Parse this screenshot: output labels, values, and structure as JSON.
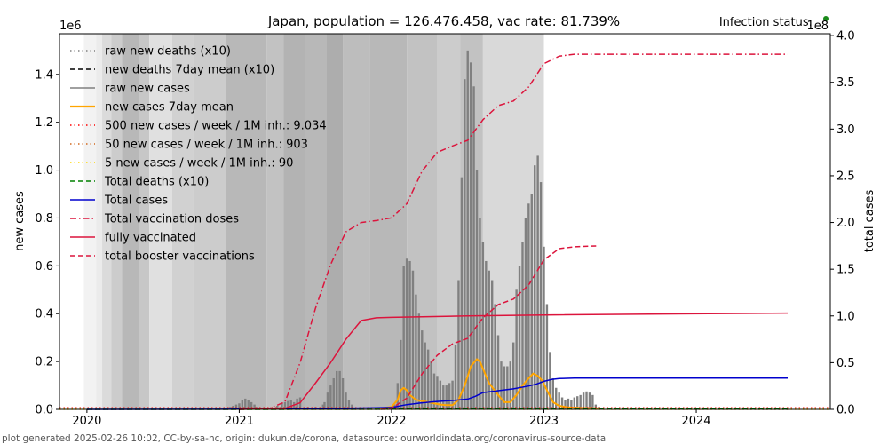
{
  "chart_data": {
    "type": "line",
    "title": "Japan, population = 126.476.458, vac rate: 81.739%",
    "status_label": "Infection status:",
    "status_color": "#1a8a1a",
    "xlabel": "",
    "ylabel_left": "new cases",
    "ylabel_right": "total cases",
    "left_scale_label": "1e6",
    "right_scale_label": "1e8",
    "footer": "plot generated 2025-02-26 10:02, CC-by-sa-nc, origin: dukun.de/corona, datasource: ourworldindata.org/coronavirus-source-data",
    "xlim": [
      2019.82,
      2024.88
    ],
    "ylim_left": [
      0,
      1.57
    ],
    "ylim_right": [
      0,
      4.02
    ],
    "x_ticks": [
      {
        "value": 2020,
        "label": "2020"
      },
      {
        "value": 2021,
        "label": "2021"
      },
      {
        "value": 2022,
        "label": "2022"
      },
      {
        "value": 2023,
        "label": "2023"
      },
      {
        "value": 2024,
        "label": "2024"
      }
    ],
    "y_ticks_left": [
      {
        "value": 0,
        "label": "0.0"
      },
      {
        "value": 0.2,
        "label": "0.2"
      },
      {
        "value": 0.4,
        "label": "0.4"
      },
      {
        "value": 0.6,
        "label": "0.6"
      },
      {
        "value": 0.8,
        "label": "0.8"
      },
      {
        "value": 1.0,
        "label": "1.0"
      },
      {
        "value": 1.2,
        "label": "1.2"
      },
      {
        "value": 1.4,
        "label": "1.4"
      }
    ],
    "y_ticks_right": [
      {
        "value": 0,
        "label": "0.0"
      },
      {
        "value": 0.5,
        "label": "0.5"
      },
      {
        "value": 1.0,
        "label": "1.0"
      },
      {
        "value": 1.5,
        "label": "1.5"
      },
      {
        "value": 2.0,
        "label": "2.0"
      },
      {
        "value": 2.5,
        "label": "2.5"
      },
      {
        "value": 3.0,
        "label": "3.0"
      },
      {
        "value": 3.5,
        "label": "3.5"
      },
      {
        "value": 4.0,
        "label": "4.0"
      }
    ],
    "legend": [
      {
        "label": "raw new deaths (x10)",
        "color": "#808080",
        "style": "dotted"
      },
      {
        "label": "new deaths 7day mean (x10)",
        "color": "#000000",
        "style": "dashed"
      },
      {
        "label": "raw new cases",
        "color": "#808080",
        "style": "solid"
      },
      {
        "label": "new cases 7day mean",
        "color": "#ffa500",
        "style": "solid"
      },
      {
        "label": "500 new cases / week / 1M inh.: 9.034",
        "color": "#ff0000",
        "style": "dotted"
      },
      {
        "label": "50 new cases / week / 1M inh.: 903",
        "color": "#d2691e",
        "style": "dotted"
      },
      {
        "label": "5 new cases / week / 1M inh.: 90",
        "color": "#ffd700",
        "style": "dotted"
      },
      {
        "label": "Total deaths (x10)",
        "color": "#008000",
        "style": "dashed"
      },
      {
        "label": "Total cases",
        "color": "#0000cd",
        "style": "solid"
      },
      {
        "label": "Total vaccination doses",
        "color": "#dc143c",
        "style": "dashdot"
      },
      {
        "label": "fully vaccinated",
        "color": "#dc143c",
        "style": "solid"
      },
      {
        "label": "total booster vaccinations",
        "color": "#dc143c",
        "style": "dashed"
      }
    ],
    "background_bands": [
      {
        "x0": 2019.98,
        "x1": 2020.06,
        "gray": 0.95
      },
      {
        "x0": 2020.06,
        "x1": 2020.1,
        "gray": 0.92
      },
      {
        "x0": 2020.1,
        "x1": 2020.16,
        "gray": 0.86
      },
      {
        "x0": 2020.16,
        "x1": 2020.23,
        "gray": 0.8
      },
      {
        "x0": 2020.23,
        "x1": 2020.34,
        "gray": 0.72
      },
      {
        "x0": 2020.34,
        "x1": 2020.41,
        "gray": 0.78
      },
      {
        "x0": 2020.41,
        "x1": 2020.56,
        "gray": 0.88
      },
      {
        "x0": 2020.56,
        "x1": 2020.7,
        "gray": 0.82
      },
      {
        "x0": 2020.7,
        "x1": 2020.91,
        "gray": 0.8
      },
      {
        "x0": 2020.91,
        "x1": 2021.18,
        "gray": 0.72
      },
      {
        "x0": 2021.18,
        "x1": 2021.29,
        "gray": 0.76
      },
      {
        "x0": 2021.29,
        "x1": 2021.43,
        "gray": 0.7
      },
      {
        "x0": 2021.43,
        "x1": 2021.57,
        "gray": 0.72
      },
      {
        "x0": 2021.57,
        "x1": 2021.68,
        "gray": 0.68
      },
      {
        "x0": 2021.68,
        "x1": 2021.86,
        "gray": 0.74
      },
      {
        "x0": 2021.86,
        "x1": 2022.1,
        "gray": 0.72
      },
      {
        "x0": 2022.1,
        "x1": 2022.3,
        "gray": 0.76
      },
      {
        "x0": 2022.3,
        "x1": 2022.45,
        "gray": 0.8
      },
      {
        "x0": 2022.45,
        "x1": 2022.6,
        "gray": 0.76
      },
      {
        "x0": 2022.6,
        "x1": 2023.0,
        "gray": 0.85
      }
    ],
    "series": [
      {
        "name": "raw new cases",
        "axis": "left",
        "type": "bar",
        "color": "#808080",
        "x": [
          2020.94,
          2020.96,
          2020.98,
          2021.0,
          2021.02,
          2021.04,
          2021.06,
          2021.08,
          2021.1,
          2021.12,
          2021.2,
          2021.25,
          2021.28,
          2021.3,
          2021.32,
          2021.34,
          2021.36,
          2021.38,
          2021.4,
          2021.45,
          2021.5,
          2021.55,
          2021.56,
          2021.58,
          2021.6,
          2021.62,
          2021.64,
          2021.66,
          2021.68,
          2021.7,
          2021.72,
          2021.74,
          2021.78,
          2021.85,
          2021.92,
          2021.98,
          2022.02,
          2022.04,
          2022.06,
          2022.08,
          2022.1,
          2022.12,
          2022.14,
          2022.16,
          2022.18,
          2022.2,
          2022.22,
          2022.24,
          2022.26,
          2022.28,
          2022.3,
          2022.32,
          2022.34,
          2022.36,
          2022.38,
          2022.4,
          2022.42,
          2022.44,
          2022.46,
          2022.48,
          2022.5,
          2022.52,
          2022.54,
          2022.56,
          2022.58,
          2022.6,
          2022.62,
          2022.64,
          2022.66,
          2022.68,
          2022.7,
          2022.72,
          2022.74,
          2022.76,
          2022.78,
          2022.8,
          2022.82,
          2022.84,
          2022.86,
          2022.88,
          2022.9,
          2022.92,
          2022.94,
          2022.96,
          2022.98,
          2023.0,
          2023.02,
          2023.04,
          2023.06,
          2023.08,
          2023.1,
          2023.12,
          2023.14,
          2023.16,
          2023.18,
          2023.2,
          2023.22,
          2023.24,
          2023.26,
          2023.28,
          2023.3,
          2023.32,
          2023.34,
          2023.36
        ],
        "values": [
          0.01,
          0.015,
          0.02,
          0.025,
          0.04,
          0.045,
          0.04,
          0.03,
          0.02,
          0.01,
          0.005,
          0.015,
          0.025,
          0.03,
          0.035,
          0.04,
          0.03,
          0.045,
          0.05,
          0.01,
          0.01,
          0.02,
          0.03,
          0.07,
          0.1,
          0.13,
          0.16,
          0.16,
          0.13,
          0.07,
          0.04,
          0.02,
          0.005,
          0.003,
          0.003,
          0.005,
          0.02,
          0.11,
          0.29,
          0.6,
          0.63,
          0.62,
          0.58,
          0.48,
          0.4,
          0.33,
          0.28,
          0.25,
          0.2,
          0.15,
          0.14,
          0.12,
          0.1,
          0.1,
          0.11,
          0.12,
          0.27,
          0.54,
          0.97,
          1.38,
          1.5,
          1.45,
          1.35,
          1.0,
          0.8,
          0.7,
          0.62,
          0.58,
          0.54,
          0.44,
          0.31,
          0.2,
          0.18,
          0.18,
          0.2,
          0.28,
          0.5,
          0.6,
          0.7,
          0.8,
          0.86,
          0.9,
          1.02,
          1.06,
          0.95,
          0.68,
          0.44,
          0.24,
          0.13,
          0.09,
          0.07,
          0.05,
          0.04,
          0.045,
          0.04,
          0.05,
          0.055,
          0.06,
          0.07,
          0.075,
          0.07,
          0.06,
          0.02,
          0.01
        ]
      },
      {
        "name": "new cases 7day mean",
        "axis": "left",
        "type": "line",
        "color": "#ffa500",
        "x": [
          2021.9,
          2022.0,
          2022.04,
          2022.06,
          2022.08,
          2022.1,
          2022.12,
          2022.14,
          2022.16,
          2022.2,
          2022.24,
          2022.28,
          2022.32,
          2022.36,
          2022.4,
          2022.44,
          2022.48,
          2022.52,
          2022.56,
          2022.58,
          2022.6,
          2022.64,
          2022.7,
          2022.74,
          2022.78,
          2022.82,
          2022.86,
          2022.9,
          2022.93,
          2022.96,
          2022.99,
          2023.02,
          2023.06,
          2023.1,
          2023.16,
          2023.24,
          2023.36
        ],
        "values": [
          0.002,
          0.01,
          0.04,
          0.08,
          0.09,
          0.08,
          0.06,
          0.05,
          0.04,
          0.035,
          0.03,
          0.025,
          0.02,
          0.018,
          0.018,
          0.04,
          0.1,
          0.18,
          0.21,
          0.2,
          0.17,
          0.11,
          0.06,
          0.03,
          0.03,
          0.06,
          0.1,
          0.13,
          0.15,
          0.14,
          0.12,
          0.08,
          0.03,
          0.015,
          0.008,
          0.006,
          0.004
        ]
      },
      {
        "name": "500 new cases / week / 1M inh.: 9.034",
        "axis": "left",
        "type": "hline",
        "color": "#ff0000",
        "style": "dotted",
        "value": 0.0065
      },
      {
        "name": "50 new cases / week / 1M inh.: 903",
        "axis": "left",
        "type": "hline",
        "color": "#d2691e",
        "style": "dotted",
        "value": 0.0007
      },
      {
        "name": "5 new cases / week / 1M inh.: 90",
        "axis": "left",
        "type": "hline",
        "color": "#ffd700",
        "style": "dotted",
        "value": 0.0001
      },
      {
        "name": "raw new deaths (x10)",
        "axis": "left",
        "type": "line",
        "color": "#808080",
        "style": "dotted",
        "x": [
          2020.0,
          2021.0,
          2022.0,
          2022.7,
          2023.0,
          2023.4,
          2024.6
        ],
        "values": [
          0.0,
          0.001,
          0.001,
          0.003,
          0.004,
          0.001,
          0.0
        ]
      },
      {
        "name": "Total deaths (x10)",
        "axis": "right",
        "type": "line",
        "color": "#008000",
        "style": "dashed",
        "x": [
          2020.0,
          2021.0,
          2022.0,
          2022.5,
          2023.0,
          2023.4,
          2024.6
        ],
        "values": [
          0.0,
          0.0003,
          0.0019,
          0.0031,
          0.005,
          0.0075,
          0.0075
        ]
      },
      {
        "name": "Total cases",
        "axis": "right",
        "type": "line",
        "color": "#0000cd",
        "style": "solid",
        "x": [
          2020.0,
          2021.0,
          2021.5,
          2021.9,
          2022.0,
          2022.1,
          2022.2,
          2022.3,
          2022.4,
          2022.5,
          2022.55,
          2022.6,
          2022.7,
          2022.8,
          2022.9,
          2022.95,
          2023.0,
          2023.05,
          2023.1,
          2023.2,
          2023.4,
          2024.6
        ],
        "values": [
          0.0,
          0.002,
          0.008,
          0.017,
          0.02,
          0.05,
          0.07,
          0.085,
          0.095,
          0.11,
          0.14,
          0.18,
          0.2,
          0.22,
          0.25,
          0.27,
          0.3,
          0.32,
          0.33,
          0.335,
          0.335,
          0.335
        ]
      },
      {
        "name": "Total vaccination doses",
        "axis": "right",
        "type": "line",
        "color": "#dc143c",
        "style": "dashdot",
        "x": [
          2021.0,
          2021.2,
          2021.3,
          2021.4,
          2021.5,
          2021.6,
          2021.7,
          2021.8,
          2021.9,
          2022.0,
          2022.1,
          2022.2,
          2022.3,
          2022.4,
          2022.5,
          2022.6,
          2022.7,
          2022.8,
          2022.9,
          2023.0,
          2023.1,
          2023.2,
          2023.5,
          2024.6
        ],
        "values": [
          0.0,
          0.01,
          0.08,
          0.5,
          1.08,
          1.55,
          1.9,
          2.0,
          2.02,
          2.05,
          2.2,
          2.55,
          2.75,
          2.82,
          2.88,
          3.1,
          3.25,
          3.3,
          3.45,
          3.7,
          3.78,
          3.8,
          3.8,
          3.8
        ]
      },
      {
        "name": "fully vaccinated",
        "axis": "right",
        "type": "line",
        "color": "#dc143c",
        "style": "solid",
        "x": [
          2021.0,
          2021.3,
          2021.4,
          2021.5,
          2021.6,
          2021.7,
          2021.8,
          2021.9,
          2022.0,
          2022.2,
          2022.5,
          2023.0,
          2024.6
        ],
        "values": [
          0.0,
          0.01,
          0.07,
          0.28,
          0.5,
          0.75,
          0.95,
          0.98,
          0.985,
          0.99,
          1.0,
          1.01,
          1.03
        ]
      },
      {
        "name": "total booster vaccinations",
        "axis": "right",
        "type": "line",
        "color": "#dc143c",
        "style": "dashed",
        "x": [
          2021.93,
          2022.0,
          2022.1,
          2022.2,
          2022.3,
          2022.4,
          2022.5,
          2022.6,
          2022.7,
          2022.8,
          2022.9,
          2023.0,
          2023.1,
          2023.2,
          2023.35
        ],
        "values": [
          0.0,
          0.01,
          0.12,
          0.38,
          0.58,
          0.7,
          0.76,
          0.98,
          1.12,
          1.18,
          1.33,
          1.6,
          1.72,
          1.74,
          1.75
        ]
      }
    ]
  }
}
